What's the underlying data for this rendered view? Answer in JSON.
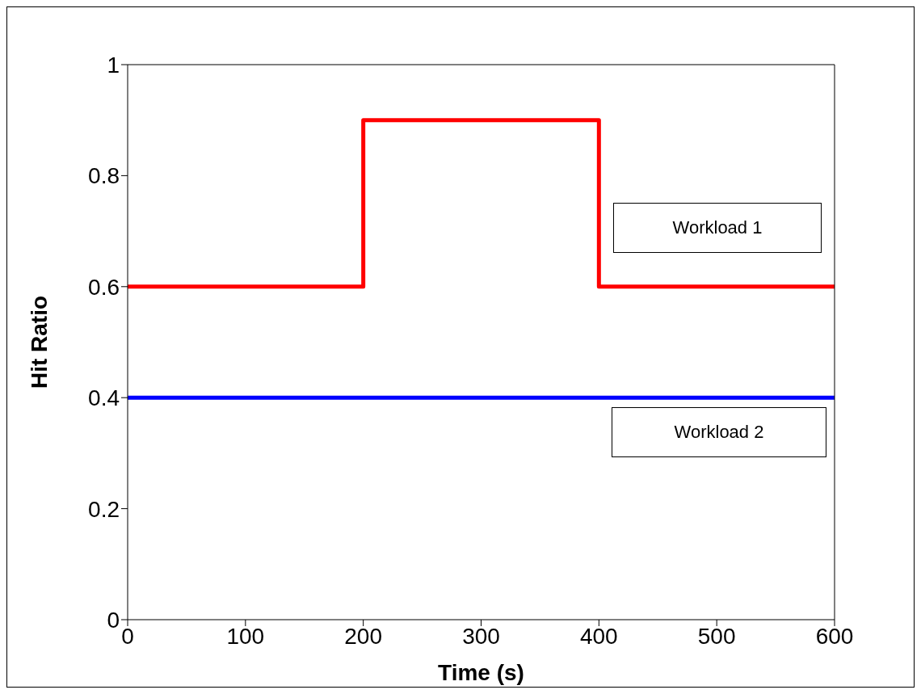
{
  "chart_data": {
    "type": "step",
    "xlabel": "Time (s)",
    "ylabel": "Hit Ratio",
    "series": [
      {
        "name": "Workload 1",
        "color": "#ff0000",
        "x": [
          0,
          200,
          400,
          600
        ],
        "values": [
          0.6,
          0.9,
          0.6,
          0.6
        ]
      },
      {
        "name": "Workload 2",
        "color": "#0000ff",
        "x": [
          0,
          600
        ],
        "values": [
          0.4,
          0.4
        ]
      }
    ],
    "xlim": [
      0,
      600
    ],
    "xticks": [
      0,
      100,
      200,
      300,
      400,
      500,
      600
    ],
    "ylim": [
      0,
      1
    ],
    "yticks": [
      0,
      0.2,
      0.4,
      0.6,
      0.8,
      1
    ],
    "grid": false,
    "legend": false,
    "marker": "none",
    "line_style": "solid"
  }
}
